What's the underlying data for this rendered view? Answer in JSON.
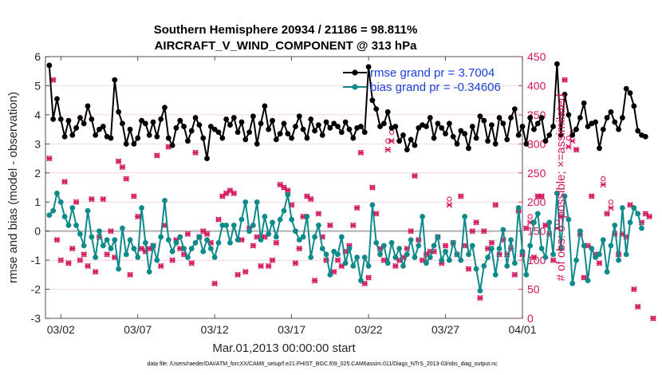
{
  "chart_data": {
    "type": "line",
    "title": "Southern Hemisphere 20934 / 21186 = 98.811%",
    "subtitle": "AIRCRAFT_V_WIND_COMPONENT @ 313 hPa",
    "xlabel": "Mar.01,2013 00:00:00 start",
    "ylabel": "rmse and bias (model - observation)",
    "ylabel_right": "# of obs: o=possible; ×=assimilated",
    "footer": "data file: /Users/raeder/DAI/ATM_forcXX/CAM6_setup/f.e21.FHIST_BGC.f09_025.CAM6assim.011/Diags_NTrS_2013-03/obs_diag_output.nc",
    "xlim": [
      1.0,
      32.0
    ],
    "ylim": [
      -3,
      6
    ],
    "ylim_right": [
      0,
      450
    ],
    "x_ticks": [
      2,
      7,
      12,
      17,
      22,
      27,
      32
    ],
    "x_tick_labels": [
      "03/02",
      "03/07",
      "03/12",
      "03/17",
      "03/22",
      "03/27",
      "04/01"
    ],
    "y_ticks": [
      -3,
      -2,
      -1,
      0,
      1,
      2,
      3,
      4,
      5,
      6
    ],
    "y_tick_labels": [
      "-3",
      "-2",
      "-1",
      "0",
      "1",
      "2",
      "3",
      "4",
      "5",
      "6"
    ],
    "y_ticks_right": [
      0,
      50,
      100,
      150,
      200,
      250,
      300,
      350,
      400,
      450
    ],
    "y_tick_labels_right": [
      "0",
      "50",
      "100",
      "150",
      "200",
      "250",
      "300",
      "350",
      "400",
      "450"
    ],
    "x_start": 1.25,
    "x_step": 0.25,
    "colors": {
      "rmse": "#000000",
      "bias": "#0f8a8a",
      "obs": "#d4145a",
      "zero_line": "#b0b0b0"
    },
    "series": [
      {
        "name": "rmse grand pr = 3.7004",
        "axis": "left",
        "values": [
          5.7,
          3.85,
          4.55,
          3.85,
          3.25,
          3.8,
          3.3,
          3.55,
          3.9,
          3.7,
          4.3,
          3.85,
          3.3,
          3.5,
          3.6,
          3.25,
          3.2,
          5.2,
          4.1,
          3.7,
          3.0,
          3.5,
          3.0,
          3.2,
          3.8,
          3.7,
          3.3,
          3.75,
          3.25,
          3.85,
          4.25,
          3.2,
          2.95,
          3.55,
          3.8,
          3.6,
          3.1,
          3.45,
          3.9,
          3.65,
          3.2,
          2.5,
          3.6,
          3.5,
          3.4,
          3.2,
          3.85,
          3.65,
          3.9,
          3.4,
          3.75,
          3.15,
          3.4,
          3.95,
          3.0,
          3.7,
          4.3,
          3.5,
          3.8,
          3.15,
          3.35,
          3.7,
          3.35,
          3.2,
          3.6,
          3.95,
          3.5,
          3.2,
          3.85,
          3.45,
          3.65,
          3.3,
          3.75,
          3.55,
          3.7,
          3.6,
          3.4,
          3.75,
          3.5,
          3.2,
          3.55,
          3.6,
          3.4,
          5.65,
          4.5,
          4.2,
          3.6,
          3.7,
          4.1,
          3.55,
          3.6,
          3.1,
          3.3,
          2.8,
          3.15,
          2.95,
          3.55,
          3.65,
          3.6,
          3.9,
          3.2,
          3.7,
          3.55,
          3.35,
          3.7,
          3.25,
          3.0,
          3.45,
          3.35,
          2.85,
          3.6,
          3.2,
          3.95,
          3.8,
          3.1,
          3.65,
          3.0,
          3.9,
          3.7,
          3.15,
          3.9,
          4.2,
          3.3,
          3.6,
          3.0,
          3.9,
          3.5,
          3.7,
          3.9,
          3.1,
          3.3,
          3.6,
          5.75,
          3.3,
          4.7,
          4.0,
          3.3,
          3.5,
          3.9,
          4.4,
          3.6,
          3.7,
          3.75,
          2.85,
          3.5,
          3.9,
          4.1,
          3.75,
          3.5,
          3.9,
          4.9,
          4.75,
          4.3,
          3.45,
          3.3,
          3.25
        ]
      },
      {
        "name": "bias grand pr = -0.34606",
        "axis": "left",
        "values": [
          0.55,
          0.7,
          1.3,
          1.0,
          0.5,
          0.2,
          0.8,
          0.2,
          -0.1,
          -0.5,
          0.7,
          -0.2,
          -0.9,
          0.0,
          -0.5,
          -0.3,
          -0.6,
          -0.3,
          -1.3,
          0.1,
          -0.8,
          -0.3,
          -0.6,
          -0.9,
          0.8,
          -0.4,
          -1.4,
          -0.5,
          -1.0,
          -0.2,
          1.05,
          -0.3,
          -0.7,
          -0.4,
          -0.2,
          -0.6,
          -0.9,
          -0.6,
          -0.4,
          -0.2,
          -0.7,
          -0.3,
          -0.6,
          -0.9,
          -0.4,
          0.2,
          0.2,
          -0.4,
          0.2,
          -0.3,
          0.4,
          1.0,
          0.0,
          0.2,
          1.0,
          -0.3,
          0.5,
          -0.1,
          0.3,
          -0.2,
          0.4,
          0.7,
          1.25,
          0.4,
          0.0,
          -0.3,
          -0.2,
          0.5,
          -0.9,
          -0.2,
          0.2,
          -0.6,
          -0.8,
          -1.5,
          -0.7,
          -0.8,
          -0.2,
          -1.1,
          -0.6,
          -1.2,
          -0.9,
          -1.7,
          -0.9,
          -1.2,
          0.9,
          -0.4,
          -0.8,
          -0.5,
          -1.1,
          -0.4,
          -0.9,
          -0.6,
          -1.2,
          -0.8,
          -0.3,
          -0.9,
          -0.5,
          0.5,
          -1.1,
          -0.9,
          -0.5,
          -0.2,
          -1.0,
          -0.7,
          -1.0,
          -0.4,
          -0.8,
          -1.0,
          0.5,
          -0.8,
          -0.5,
          -1.3,
          -2.05,
          -1.2,
          -0.9,
          -0.6,
          -1.5,
          -0.6,
          0.05,
          -1.2,
          -0.3,
          -1.1,
          0.8,
          -0.7,
          -1.5,
          -0.5,
          0.3,
          0.6,
          -0.6,
          -0.9,
          0.3,
          -0.8,
          1.3,
          -0.6,
          1.2,
          0.4,
          -1.8,
          -1.0,
          0.0,
          -0.5,
          -1.7,
          -0.6,
          -0.9,
          -0.8,
          -0.3,
          -1.4,
          -0.5,
          0.2,
          -1.0,
          0.8,
          -0.8,
          0.3,
          0.8,
          0.6,
          0.1
        ]
      },
      {
        "name": "# of obs possible",
        "axis": "right",
        "values": [
          275,
          410,
          135,
          100,
          235,
          95,
          120,
          200,
          100,
          110,
          90,
          205,
          80,
          140,
          205,
          110,
          150,
          105,
          270,
          260,
          240,
          75,
          210,
          175,
          120,
          115,
          120,
          125,
          280,
          90,
          160,
          295,
          100,
          135,
          120,
          110,
          145,
          95,
          285,
          140,
          150,
          145,
          130,
          60,
          170,
          210,
          215,
          220,
          215,
          75,
          135,
          80,
          155,
          125,
          140,
          90,
          140,
          90,
          100,
          130,
          230,
          225,
          220,
          195,
          95,
          120,
          175,
          210,
          205,
          65,
          180,
          140,
          100,
          160,
          80,
          100,
          90,
          115,
          125,
          160,
          190,
          285,
          60,
          70,
          225,
          180,
          120,
          100,
          305,
          320,
          90,
          100,
          105,
          120,
          150,
          245,
          135,
          100,
          110,
          115,
          115,
          140,
          95,
          125,
          205,
          130,
          110,
          210,
          125,
          85,
          150,
          165,
          35,
          150,
          120,
          130,
          195,
          110,
          135,
          110,
          120,
          75,
          185,
          110,
          155,
          175,
          105,
          210,
          210,
          160,
          145,
          100,
          165,
          175,
          410,
          310,
          320,
          290,
          145,
          70,
          125,
          210,
          110,
          95,
          240,
          180,
          200,
          145,
          110,
          145,
          140,
          195,
          50,
          20,
          165,
          180,
          175,
          0
        ]
      },
      {
        "name": "# of obs assimilated",
        "axis": "right",
        "values": [
          275,
          410,
          135,
          100,
          235,
          95,
          120,
          200,
          100,
          110,
          90,
          205,
          80,
          140,
          205,
          110,
          150,
          105,
          270,
          260,
          240,
          75,
          210,
          175,
          120,
          115,
          120,
          125,
          280,
          90,
          160,
          295,
          100,
          135,
          120,
          110,
          145,
          95,
          285,
          140,
          150,
          145,
          130,
          60,
          170,
          210,
          215,
          220,
          215,
          75,
          135,
          80,
          155,
          125,
          140,
          90,
          140,
          90,
          100,
          130,
          230,
          225,
          220,
          195,
          95,
          120,
          175,
          210,
          205,
          65,
          180,
          140,
          100,
          160,
          80,
          100,
          90,
          115,
          125,
          160,
          190,
          285,
          60,
          70,
          225,
          180,
          120,
          100,
          290,
          305,
          90,
          100,
          105,
          120,
          150,
          245,
          135,
          100,
          110,
          115,
          115,
          140,
          95,
          125,
          195,
          130,
          110,
          210,
          125,
          85,
          150,
          165,
          35,
          150,
          120,
          130,
          195,
          110,
          135,
          110,
          120,
          75,
          185,
          110,
          155,
          165,
          105,
          210,
          210,
          160,
          145,
          100,
          155,
          175,
          410,
          295,
          305,
          290,
          145,
          70,
          125,
          210,
          110,
          95,
          230,
          180,
          190,
          145,
          110,
          145,
          140,
          195,
          50,
          20,
          165,
          180,
          175,
          0
        ]
      }
    ]
  }
}
